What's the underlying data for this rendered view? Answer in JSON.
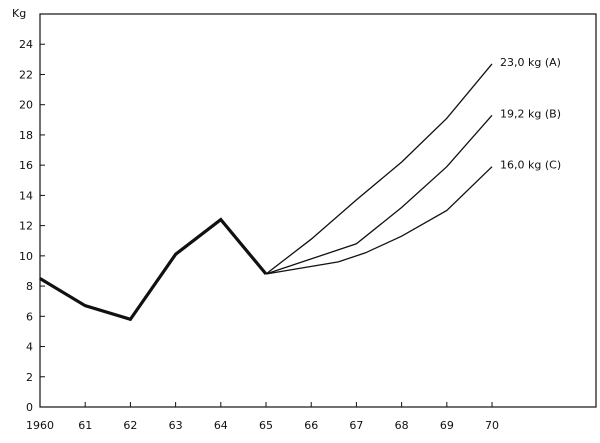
{
  "chart_data": {
    "type": "line",
    "title": "",
    "ylabel": "Kg",
    "xlabel": "",
    "x": [
      1960,
      1961,
      1962,
      1963,
      1964,
      1965,
      1966,
      1967,
      1968,
      1969,
      1970
    ],
    "x_tick_labels": [
      "1960",
      "61",
      "62",
      "63",
      "64",
      "65",
      "66",
      "67",
      "68",
      "69",
      "70"
    ],
    "y_ticks": [
      0,
      2,
      4,
      6,
      8,
      10,
      12,
      14,
      16,
      18,
      20,
      22,
      24
    ],
    "xlim": [
      1960,
      1972.3
    ],
    "ylim": [
      0,
      26
    ],
    "grid": false,
    "series": [
      {
        "name": "",
        "style": "bold",
        "points": [
          [
            1960,
            8.5
          ],
          [
            1961,
            6.7
          ],
          [
            1962,
            5.8
          ],
          [
            1963,
            10.1
          ],
          [
            1964,
            12.4
          ],
          [
            1965,
            8.8
          ]
        ]
      },
      {
        "name": "23,0 kg (A)",
        "style": "thin",
        "points": [
          [
            1965,
            8.8
          ],
          [
            1966,
            11.1
          ],
          [
            1967,
            13.7
          ],
          [
            1968,
            16.2
          ],
          [
            1969,
            19.1
          ],
          [
            1970,
            22.7
          ]
        ]
      },
      {
        "name": "19,2 kg (B)",
        "style": "thin",
        "points": [
          [
            1965,
            8.8
          ],
          [
            1966,
            9.8
          ],
          [
            1967,
            10.8
          ],
          [
            1968,
            13.2
          ],
          [
            1969,
            15.9
          ],
          [
            1970,
            19.3
          ]
        ]
      },
      {
        "name": "16,0 kg (C)",
        "style": "thin",
        "points": [
          [
            1965,
            8.8
          ],
          [
            1966.6,
            9.6
          ],
          [
            1967.2,
            10.2
          ],
          [
            1968,
            11.3
          ],
          [
            1969,
            13.0
          ],
          [
            1970,
            15.9
          ]
        ]
      }
    ],
    "colors": {
      "line": "#111111",
      "axis": "#111111",
      "background": "#ffffff"
    }
  }
}
